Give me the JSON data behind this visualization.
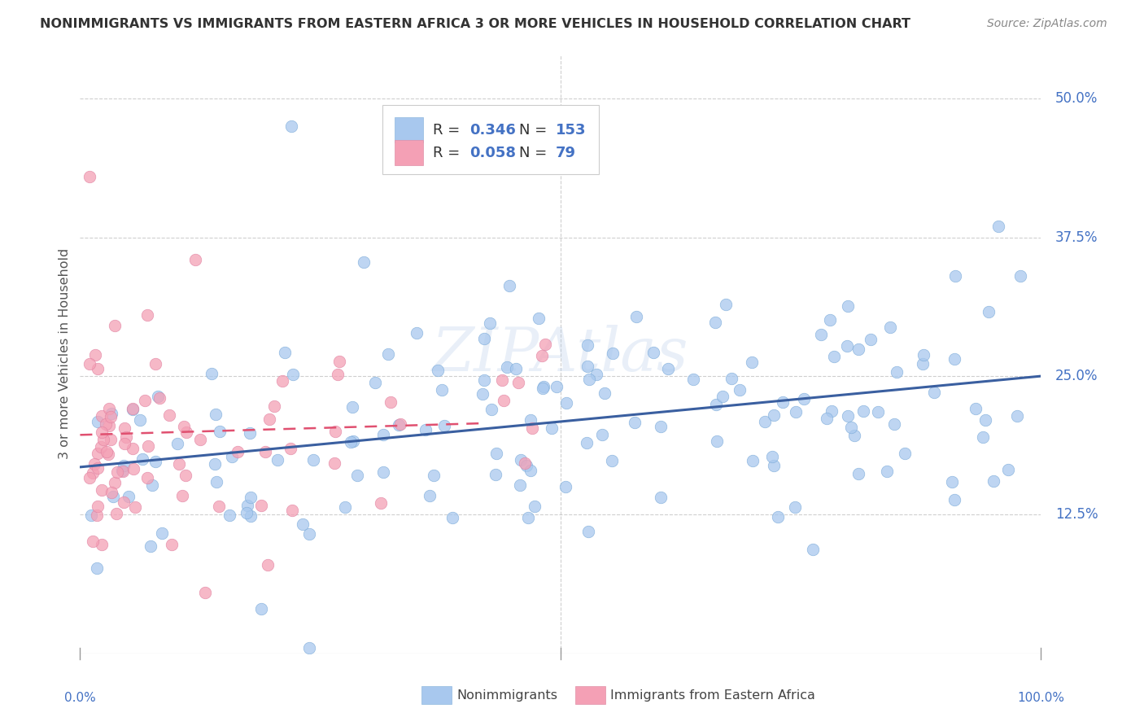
{
  "title": "NONIMMIGRANTS VS IMMIGRANTS FROM EASTERN AFRICA 3 OR MORE VEHICLES IN HOUSEHOLD CORRELATION CHART",
  "source": "Source: ZipAtlas.com",
  "ylabel": "3 or more Vehicles in Household",
  "ytick_labels": [
    "12.5%",
    "25.0%",
    "37.5%",
    "50.0%"
  ],
  "ytick_values": [
    0.125,
    0.25,
    0.375,
    0.5
  ],
  "xlim": [
    0.0,
    1.0
  ],
  "ylim": [
    0.0,
    0.54
  ],
  "blue_color": "#A8C8EE",
  "pink_color": "#F4A0B5",
  "blue_line_color": "#3A5FA0",
  "pink_line_color": "#E05070",
  "watermark": "ZIPAtlas",
  "legend_R_blue": "0.346",
  "legend_N_blue": "153",
  "legend_R_pink": "0.058",
  "legend_N_pink": "79",
  "legend_value_color": "#4472C4",
  "nonimmigrants_label": "Nonimmigrants",
  "immigrants_label": "Immigrants from Eastern Africa",
  "grid_color": "#BBBBBB",
  "background_color": "#FFFFFF",
  "title_color": "#333333",
  "source_color": "#888888",
  "axis_label_color": "#555555",
  "tick_label_color": "#4472C4",
  "bottom_tick_color": "#555555"
}
